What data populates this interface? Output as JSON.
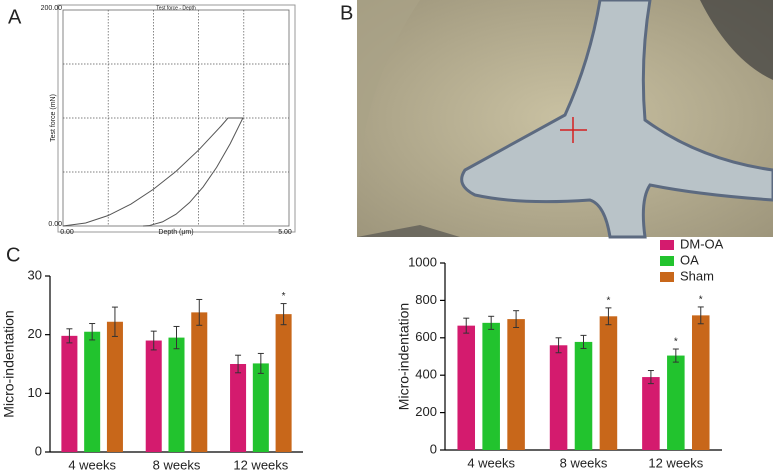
{
  "panel_labels": [
    "A",
    "B",
    "C"
  ],
  "chart_data": [
    {
      "type": "line",
      "title": "Test force - Depth",
      "x_label": "Depth (μm)",
      "y_label": "Test force (mN)",
      "xlim": [
        0,
        5
      ],
      "ylim": [
        0,
        200
      ],
      "xticks": [
        {
          "value": 0,
          "label": "0.00"
        },
        {
          "value": 5,
          "label": "5.00"
        }
      ],
      "yticks": [
        {
          "value": 0,
          "label": "0.00"
        },
        {
          "value": 200,
          "label": "200.00"
        }
      ],
      "grid": true,
      "xgrid": [
        1,
        2,
        3,
        4
      ],
      "ygrid": [
        50,
        100,
        150
      ],
      "series": [
        {
          "color": "#555555",
          "x": [
            0,
            0.5,
            1,
            1.5,
            2,
            2.5,
            3,
            3.5,
            3.65,
            3.98,
            3.7,
            3.4,
            3.1,
            2.8,
            2.5,
            2.2,
            1.9,
            1.77
          ],
          "values": [
            0,
            2.8,
            9.7,
            20.2,
            34,
            50.6,
            70.3,
            92.7,
            100,
            100,
            76.3,
            54.4,
            36.2,
            21.7,
            10.9,
            3.8,
            0.3,
            0
          ]
        }
      ]
    },
    {
      "type": "bar",
      "y_label": "Micro-indentation",
      "categories": [
        "4 weeks",
        "8 weeks",
        "12 weeks"
      ],
      "ylim": [
        0,
        30
      ],
      "yticks": [
        0,
        10,
        20,
        30
      ],
      "legend": false,
      "series": [
        {
          "name": "DM-OA",
          "color": "#d41b6e",
          "values": [
            19.8,
            19,
            15
          ],
          "errors": [
            1.2,
            1.6,
            1.5
          ],
          "annotations": [
            null,
            null,
            null
          ]
        },
        {
          "name": "OA",
          "color": "#22c32e",
          "values": [
            20.5,
            19.5,
            15.1
          ],
          "errors": [
            1.4,
            1.9,
            1.7
          ],
          "annotations": [
            null,
            null,
            null
          ]
        },
        {
          "name": "Sham",
          "color": "#c8671a",
          "values": [
            22.2,
            23.8,
            23.5
          ],
          "errors": [
            2.5,
            2.2,
            1.8
          ],
          "annotations": [
            null,
            null,
            "*"
          ]
        }
      ]
    },
    {
      "type": "bar",
      "y_label": "Micro-indentation",
      "categories": [
        "4 weeks",
        "8 weeks",
        "12 weeks"
      ],
      "ylim": [
        0,
        1000
      ],
      "yticks": [
        0,
        200,
        400,
        600,
        800,
        1000
      ],
      "legend": "top-right",
      "series": [
        {
          "name": "DM-OA",
          "color": "#d41b6e",
          "values": [
            665,
            560,
            390
          ],
          "errors": [
            40,
            40,
            35
          ],
          "annotations": [
            null,
            null,
            null
          ]
        },
        {
          "name": "OA",
          "color": "#22c32e",
          "values": [
            680,
            578,
            505
          ],
          "errors": [
            35,
            35,
            35
          ],
          "annotations": [
            null,
            null,
            "*"
          ]
        },
        {
          "name": "Sham",
          "color": "#c8671a",
          "values": [
            700,
            715,
            720
          ],
          "errors": [
            45,
            45,
            45
          ],
          "annotations": [
            null,
            "*",
            "*"
          ]
        }
      ]
    }
  ]
}
